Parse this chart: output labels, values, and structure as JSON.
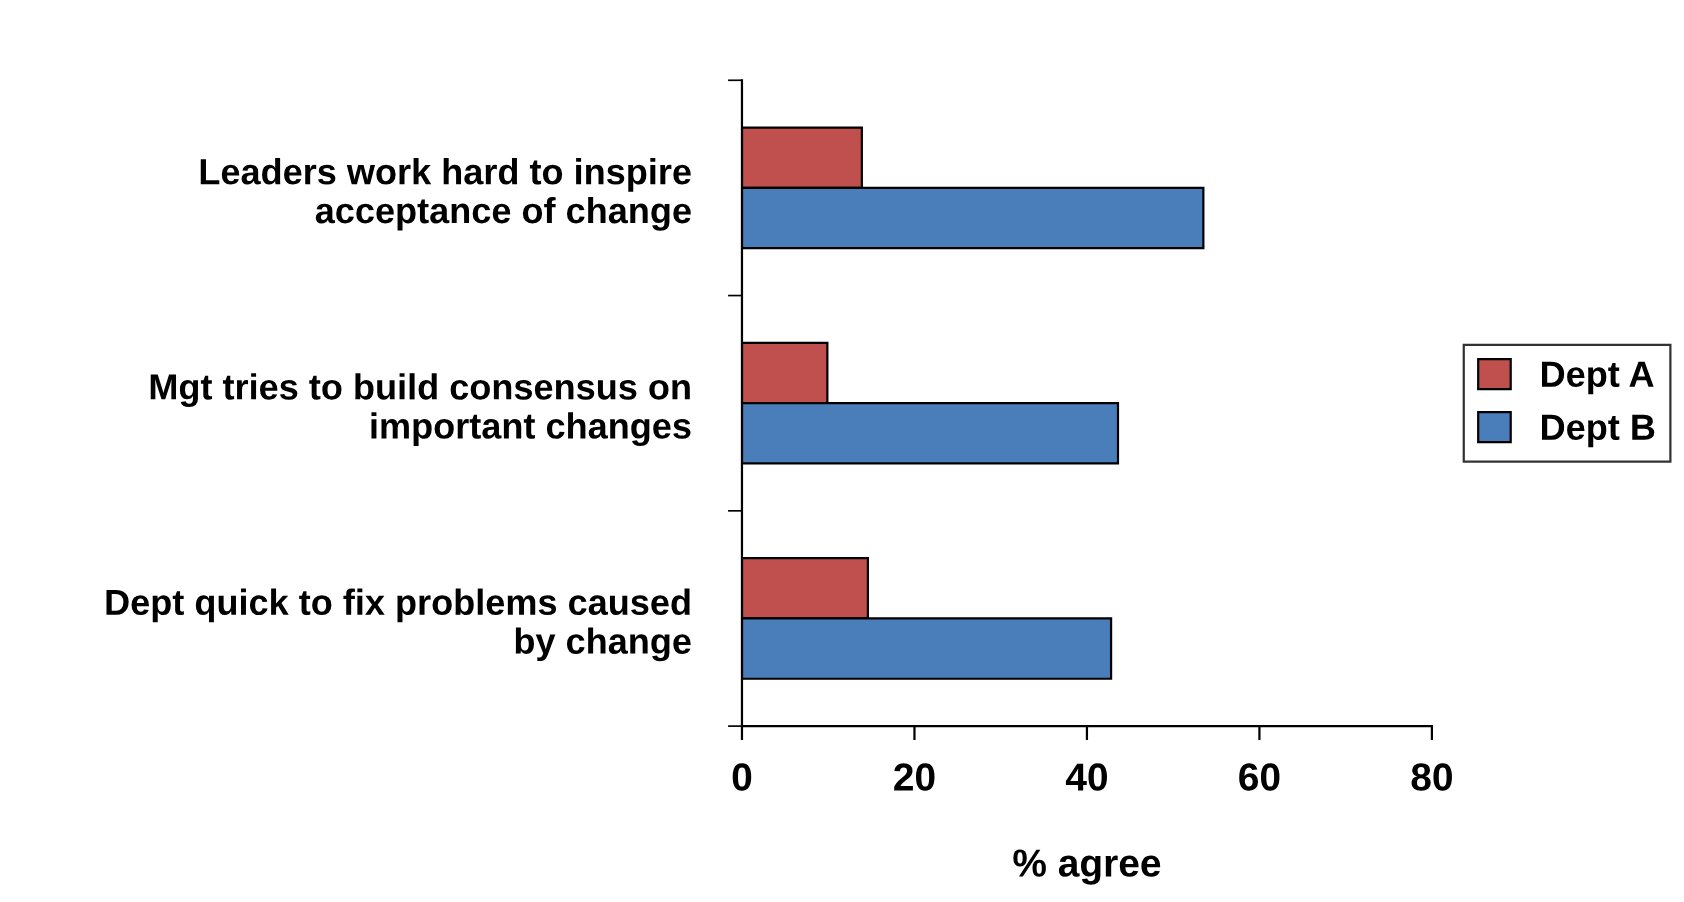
{
  "chart_data": {
    "type": "bar",
    "orientation": "horizontal",
    "xlabel": "% agree",
    "categories": [
      "Leaders work hard to inspire\nacceptance of change",
      "Mgt tries to build consensus on\nimportant changes",
      "Dept quick to fix problems caused\nby change"
    ],
    "series": [
      {
        "name": "Dept A",
        "color": "#c0504d",
        "values": [
          13.9,
          9.9,
          14.6
        ]
      },
      {
        "name": "Dept B",
        "color": "#4a7ebb",
        "values": [
          53.5,
          43.6,
          42.8
        ]
      }
    ],
    "xlim": [
      0,
      80
    ],
    "xticks": [
      0,
      20,
      40,
      60,
      80
    ],
    "grid": false,
    "legend": "right"
  }
}
